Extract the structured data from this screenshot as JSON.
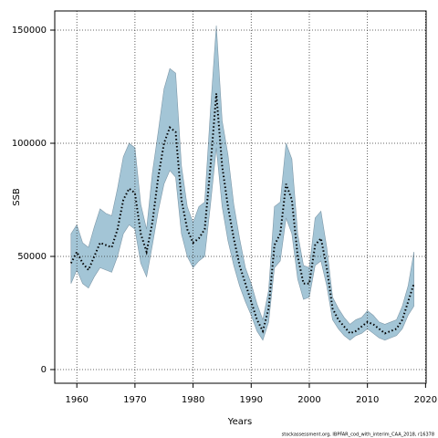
{
  "chart_data": {
    "type": "line",
    "xlabel": "Years",
    "ylabel": "SSB",
    "footnote": "stockassessment.org, IBPFAR_cod_with_interim_CAA_2018, r16378",
    "x": [
      1959,
      1960,
      1961,
      1962,
      1963,
      1964,
      1965,
      1966,
      1967,
      1968,
      1969,
      1970,
      1971,
      1972,
      1973,
      1974,
      1975,
      1976,
      1977,
      1978,
      1979,
      1980,
      1981,
      1982,
      1983,
      1984,
      1985,
      1986,
      1987,
      1988,
      1989,
      1990,
      1991,
      1992,
      1993,
      1994,
      1995,
      1996,
      1997,
      1998,
      1999,
      2000,
      2001,
      2002,
      2003,
      2004,
      2005,
      2006,
      2007,
      2008,
      2009,
      2010,
      2011,
      2012,
      2013,
      2014,
      2015,
      2016,
      2017,
      2018
    ],
    "values": [
      47000,
      52000,
      47000,
      44000,
      50000,
      56000,
      55000,
      54000,
      62000,
      75000,
      80000,
      78000,
      60000,
      52000,
      65000,
      85000,
      100000,
      107000,
      105000,
      75000,
      62000,
      56000,
      58000,
      62000,
      90000,
      122000,
      90000,
      72000,
      58000,
      46000,
      38000,
      30000,
      22000,
      17000,
      27000,
      55000,
      60000,
      82000,
      75000,
      50000,
      38000,
      38000,
      55000,
      58000,
      45000,
      27000,
      22000,
      19000,
      16000,
      17000,
      19000,
      21000,
      20000,
      18000,
      16000,
      17000,
      18000,
      22000,
      30000,
      38000
    ],
    "upper": [
      60000,
      64000,
      56000,
      54000,
      63000,
      71000,
      69000,
      68000,
      80000,
      94000,
      100000,
      98000,
      73000,
      62000,
      87000,
      105000,
      124000,
      133000,
      131000,
      90000,
      72000,
      65000,
      72000,
      74000,
      115000,
      152000,
      110000,
      95000,
      73000,
      58000,
      45000,
      38000,
      29000,
      22000,
      35000,
      72000,
      74000,
      100000,
      93000,
      60000,
      46000,
      45000,
      67000,
      70000,
      54000,
      32000,
      27000,
      23000,
      20000,
      22000,
      23000,
      26000,
      24000,
      21000,
      20000,
      21000,
      22000,
      28000,
      37000,
      52000
    ],
    "lower": [
      38000,
      44000,
      38000,
      36000,
      41000,
      45000,
      44000,
      43000,
      50000,
      60000,
      64000,
      62000,
      47000,
      41000,
      55000,
      70000,
      82000,
      88000,
      85000,
      60000,
      50000,
      45000,
      48000,
      50000,
      73000,
      98000,
      72000,
      57000,
      46000,
      37000,
      30000,
      24000,
      17000,
      13000,
      21000,
      45000,
      48000,
      67000,
      60000,
      40000,
      31000,
      32000,
      46000,
      48000,
      37000,
      22000,
      18000,
      15000,
      13000,
      15000,
      16000,
      18000,
      16000,
      14000,
      13000,
      14000,
      15000,
      18000,
      24000,
      28000
    ],
    "color": "#000000",
    "band_color": "#a3c5d6",
    "xlim": [
      1956.2,
      2020.1
    ],
    "ylim": [
      -6050,
      158470
    ],
    "xticks": [
      1960,
      1970,
      1980,
      1990,
      2000,
      2010,
      2020
    ],
    "yticks": [
      0,
      50000,
      100000,
      150000
    ],
    "grid": true
  }
}
